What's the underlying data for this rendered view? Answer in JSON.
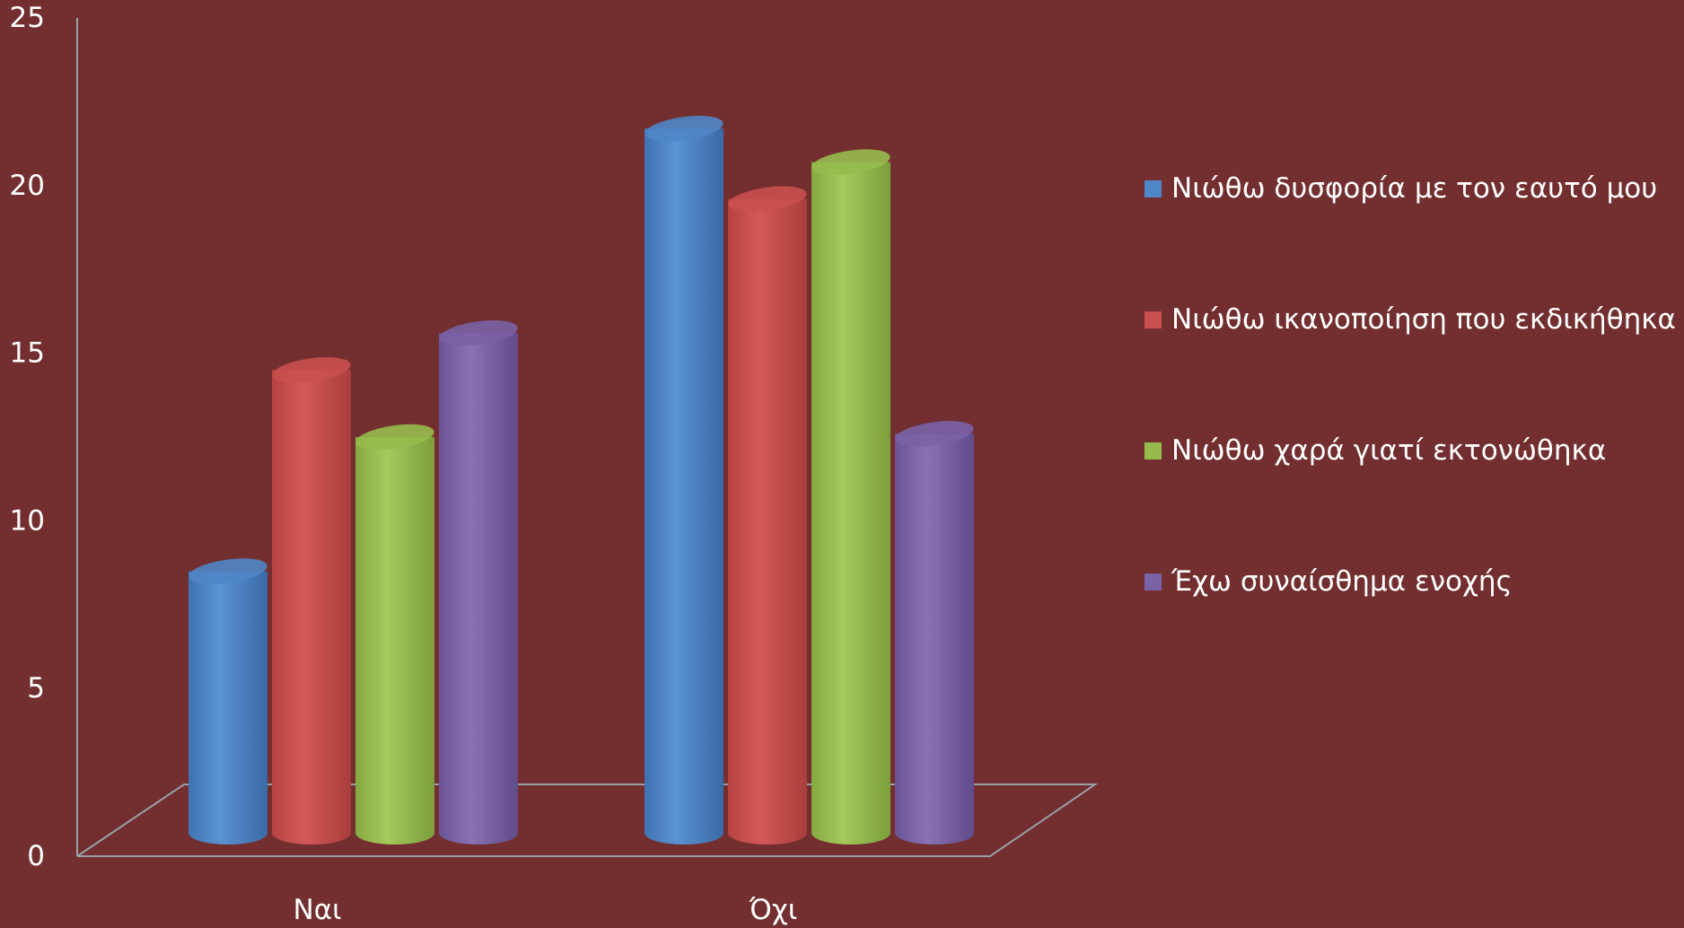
{
  "colors": {
    "background": "#732f2f",
    "axis": "#9aa0a8",
    "series": [
      "#4f86c6",
      "#c9504f",
      "#96bb4d",
      "#7a62a6"
    ]
  },
  "chart_data": {
    "type": "bar",
    "style": "3d-cylinder",
    "categories": [
      "Ναι",
      "Όχι"
    ],
    "series": [
      {
        "name": "Νιώθω δυσφορία με τον εαυτό μου",
        "values": [
          8.5,
          21.7
        ]
      },
      {
        "name": "Νιώθω ικανοποίηση που εκδικήθηκα",
        "values": [
          14.5,
          19.6
        ]
      },
      {
        "name": "Νιώθω χαρά γιατί εκτονώθηκα",
        "values": [
          12.5,
          20.7
        ]
      },
      {
        "name": "Έχω συναίσθημα ενοχής",
        "values": [
          15.6,
          12.6
        ]
      }
    ],
    "ylim": [
      0,
      25
    ],
    "yticks": [
      "0",
      "5",
      "10",
      "15",
      "20",
      "25"
    ],
    "grid": false,
    "legend_position": "right"
  }
}
